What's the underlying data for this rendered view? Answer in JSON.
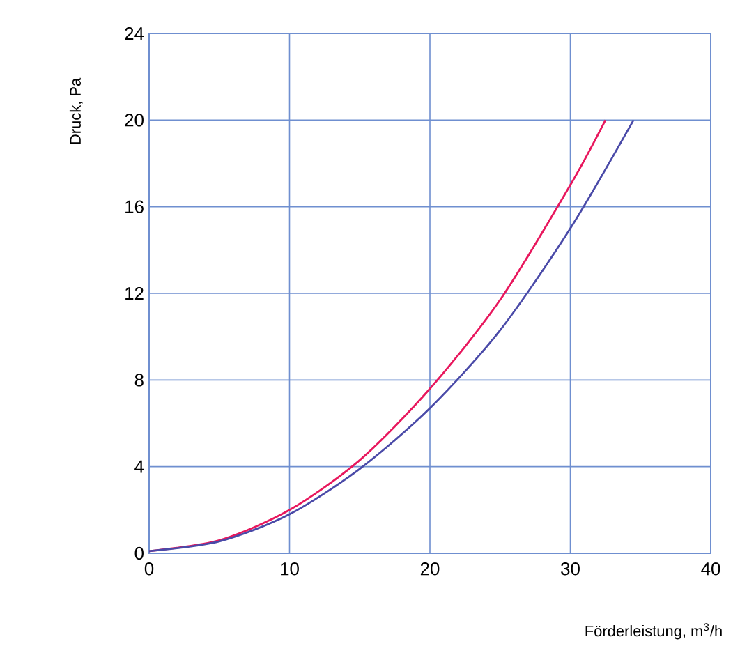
{
  "chart_data": {
    "type": "line",
    "xlabel": "Förderleistung, m$^{3}$/h",
    "ylabel": "Druck, Pa",
    "xlim": [
      0,
      40
    ],
    "xticks": [
      0,
      10,
      20,
      30,
      40
    ],
    "ylim": [
      0,
      24
    ],
    "yticks": [
      0,
      4,
      8,
      12,
      16,
      20,
      24
    ],
    "grid": true,
    "series": [
      {
        "color": "#e8175d",
        "x": [
          0,
          5,
          10,
          15,
          20,
          25,
          30,
          32.5
        ],
        "values": [
          0.1,
          0.6,
          2.0,
          4.3,
          7.6,
          11.7,
          17,
          20
        ]
      },
      {
        "color": "#4a4aa8",
        "x": [
          0,
          5,
          10,
          15,
          20,
          25,
          30,
          34.5
        ],
        "values": [
          0.1,
          0.55,
          1.8,
          3.9,
          6.7,
          10.3,
          15,
          20
        ]
      }
    ]
  }
}
